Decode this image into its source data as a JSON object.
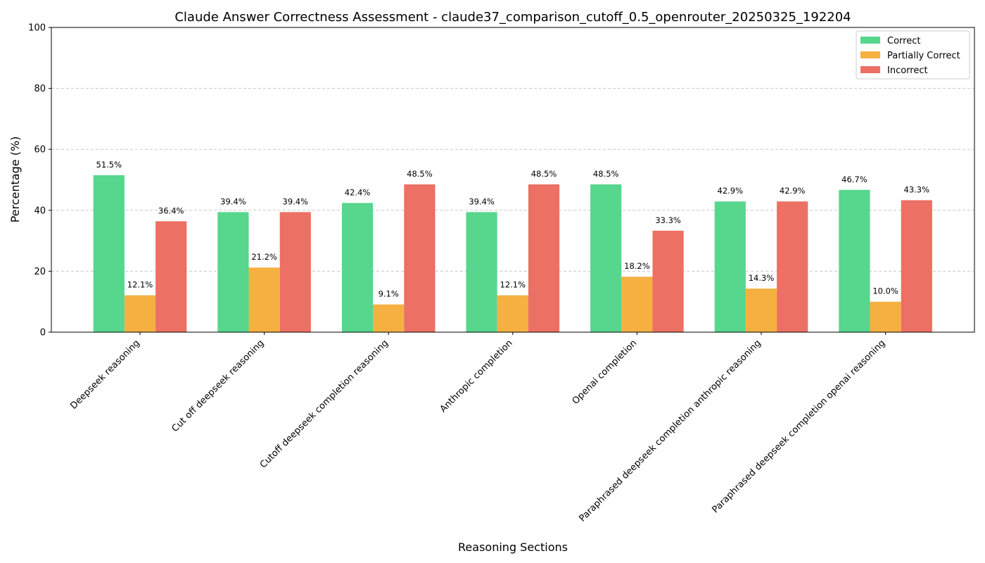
{
  "chart_data": {
    "type": "bar",
    "title": "Claude Answer Correctness Assessment - claude37_comparison_cutoff_0.5_openrouter_20250325_192204",
    "xlabel": "Reasoning Sections",
    "ylabel": "Percentage (%)",
    "ylim": [
      0,
      100
    ],
    "yticks": [
      "0",
      "20",
      "40",
      "60",
      "80",
      "100"
    ],
    "grid": "y-dashed",
    "legend_position": "top-right",
    "categories": [
      "Deepseek reasoning",
      "Cut off deepseek reasoning",
      "Cutoff deepseek completion reasoning",
      "Anthropic completion",
      "Openai completion",
      "Paraphrased deepseek completion anthropic reasoning",
      "Paraphrased deepseek completion openai reasoning"
    ],
    "series": [
      {
        "name": "Correct",
        "color": "#57d68d",
        "values": [
          51.5,
          39.4,
          42.4,
          39.4,
          48.5,
          42.9,
          46.7
        ],
        "labels": [
          "51.5%",
          "39.4%",
          "42.4%",
          "39.4%",
          "48.5%",
          "42.9%",
          "46.7%"
        ]
      },
      {
        "name": "Partially Correct",
        "color": "#f5b041",
        "values": [
          12.1,
          21.2,
          9.1,
          12.1,
          18.2,
          14.3,
          10.0
        ],
        "labels": [
          "12.1%",
          "21.2%",
          "9.1%",
          "12.1%",
          "18.2%",
          "14.3%",
          "10.0%"
        ]
      },
      {
        "name": "Incorrect",
        "color": "#ec7063",
        "values": [
          36.4,
          39.4,
          48.5,
          48.5,
          33.3,
          42.9,
          43.3
        ],
        "labels": [
          "36.4%",
          "39.4%",
          "48.5%",
          "48.5%",
          "33.3%",
          "42.9%",
          "43.3%"
        ]
      }
    ]
  }
}
